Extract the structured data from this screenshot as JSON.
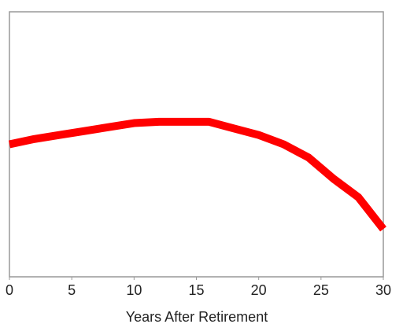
{
  "chart_data": {
    "type": "line",
    "x": [
      0,
      2,
      4,
      6,
      8,
      10,
      12,
      14,
      16,
      18,
      20,
      22,
      24,
      26,
      28,
      30
    ],
    "series": [
      {
        "color": "#ff0000",
        "values": [
          50,
          52,
          53.5,
          55,
          56.5,
          58,
          58.5,
          58.5,
          58.5,
          56,
          53.5,
          50,
          45,
          37,
          30,
          18
        ]
      }
    ],
    "xlim": [
      0,
      30
    ],
    "xticks": [
      0,
      5,
      10,
      15,
      20,
      25,
      30
    ],
    "ylim": [
      0,
      100
    ],
    "xlabel": "Years After Retirement"
  }
}
